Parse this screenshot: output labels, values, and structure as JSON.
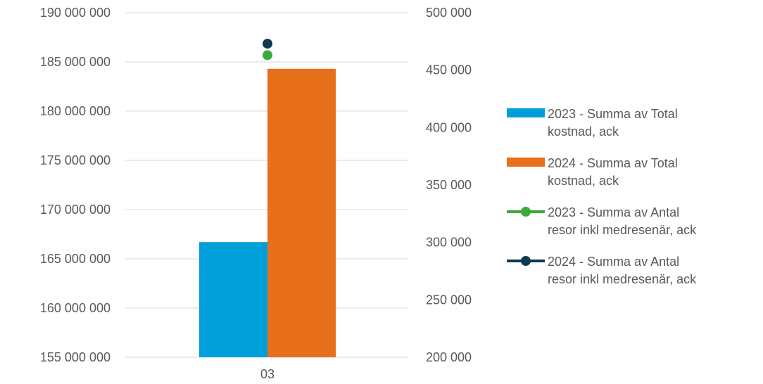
{
  "chart_data": {
    "type": "bar",
    "categories": [
      "03"
    ],
    "y_left": {
      "ticks": [
        "155 000 000",
        "160 000 000",
        "165 000 000",
        "170 000 000",
        "175 000 000",
        "180 000 000",
        "185 000 000",
        "190 000 000"
      ],
      "range": [
        155000000,
        190000000
      ]
    },
    "y_right": {
      "ticks": [
        "200 000",
        "250 000",
        "300 000",
        "350 000",
        "400 000",
        "450 000",
        "500 000"
      ],
      "range": [
        200000,
        500000
      ]
    },
    "grid": true,
    "legend_position": "right",
    "series": [
      {
        "name_lines": [
          "2023 - Summa av Total",
          "kostnad, ack"
        ],
        "type": "bar",
        "axis": "left",
        "color": "#009FDA",
        "values": [
          166700000
        ]
      },
      {
        "name_lines": [
          "2024 - Summa av Total",
          "kostnad, ack"
        ],
        "type": "bar",
        "axis": "left",
        "color": "#E8701A",
        "values": [
          184300000
        ]
      },
      {
        "name_lines": [
          "2023 - Summa av Antal",
          "resor inkl medresenär, ack"
        ],
        "type": "line",
        "axis": "right",
        "color": "#3BAA3F",
        "values": [
          463000
        ]
      },
      {
        "name_lines": [
          "2024 - Summa av Antal",
          "resor inkl medresenär, ack"
        ],
        "type": "line",
        "axis": "right",
        "color": "#0E3A52",
        "values": [
          473000
        ]
      }
    ]
  }
}
